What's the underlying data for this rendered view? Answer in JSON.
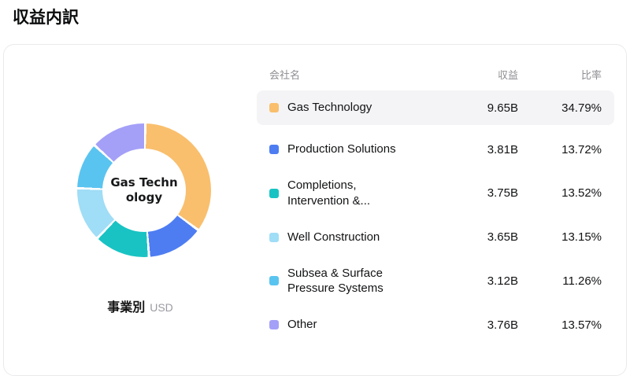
{
  "page": {
    "title": "収益内訳"
  },
  "panel": {
    "donut": {
      "center_label": "Gas Technology",
      "center_label_lines": [
        "Gas Techn",
        "ology"
      ],
      "caption_bold": "事業別",
      "caption_unit": "USD"
    },
    "table": {
      "headers": {
        "name": "会社名",
        "revenue": "収益",
        "ratio": "比率"
      },
      "rows": [
        {
          "label": "Gas Technology",
          "revenue": "9.65B",
          "ratio": "34.79%",
          "color": "#f9bf6d",
          "highlighted": true
        },
        {
          "label": "Production Solutions",
          "revenue": "3.81B",
          "ratio": "13.72%",
          "color": "#4e7df2",
          "highlighted": false
        },
        {
          "label": "Completions, Intervention &...",
          "revenue": "3.75B",
          "ratio": "13.52%",
          "color": "#19c3c3",
          "highlighted": false
        },
        {
          "label": "Well Construction",
          "revenue": "3.65B",
          "ratio": "13.15%",
          "color": "#a0ddf6",
          "highlighted": false
        },
        {
          "label": "Subsea & Surface Pressure Systems",
          "revenue": "3.12B",
          "ratio": "11.26%",
          "color": "#5ac4f0",
          "highlighted": false
        },
        {
          "label": "Other",
          "revenue": "3.76B",
          "ratio": "13.57%",
          "color": "#a4a0f8",
          "highlighted": false
        }
      ]
    }
  },
  "chart_data": {
    "type": "pie",
    "donut": true,
    "title": "収益内訳 — 事業別 (USD)",
    "categories": [
      "Gas Technology",
      "Production Solutions",
      "Completions, Intervention &...",
      "Well Construction",
      "Subsea & Surface Pressure Systems",
      "Other"
    ],
    "values": [
      34.79,
      13.72,
      13.52,
      13.15,
      11.26,
      13.57
    ],
    "revenues_billions_usd": [
      9.65,
      3.81,
      3.75,
      3.65,
      3.12,
      3.76
    ],
    "colors": [
      "#f9bf6d",
      "#4e7df2",
      "#19c3c3",
      "#a0ddf6",
      "#5ac4f0",
      "#a4a0f8"
    ],
    "unit": "USD",
    "legend_position": "right",
    "start_angle_deg": 0,
    "direction": "clockwise"
  }
}
